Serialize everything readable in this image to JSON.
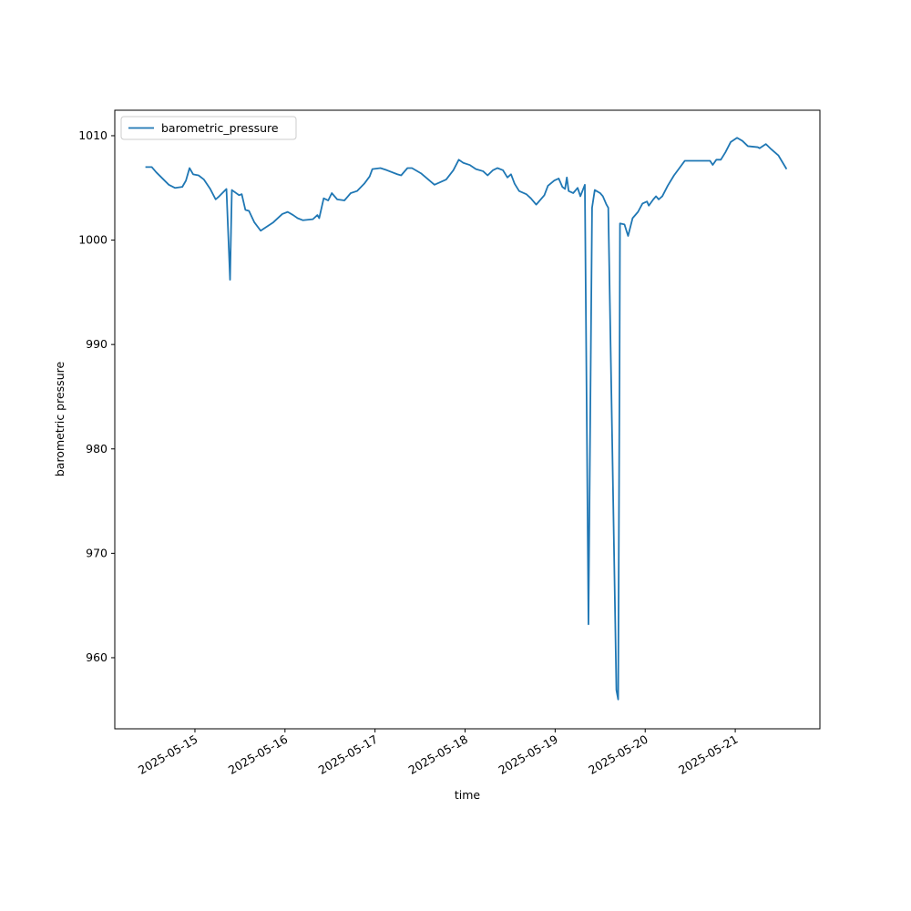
{
  "chart_data": {
    "type": "line",
    "xlabel": "time",
    "ylabel": "barometric pressure",
    "x": [
      14.45,
      14.52,
      14.57,
      14.64,
      14.71,
      14.78,
      14.86,
      14.9,
      14.94,
      14.98,
      15.04,
      15.1,
      15.17,
      15.23,
      15.27,
      15.35,
      15.39,
      15.41,
      15.49,
      15.52,
      15.56,
      15.6,
      15.66,
      15.73,
      15.87,
      15.97,
      16.03,
      16.09,
      16.14,
      16.2,
      16.31,
      16.36,
      16.38,
      16.43,
      16.48,
      16.52,
      16.58,
      16.66,
      16.73,
      16.8,
      16.88,
      16.94,
      16.97,
      17.06,
      17.13,
      17.25,
      17.29,
      17.36,
      17.41,
      17.51,
      17.66,
      17.79,
      17.87,
      17.93,
      17.98,
      18.05,
      18.12,
      18.2,
      18.25,
      18.31,
      18.36,
      18.42,
      18.47,
      18.51,
      18.55,
      18.6,
      18.68,
      18.73,
      18.79,
      18.88,
      18.92,
      18.99,
      19.04,
      19.08,
      19.11,
      19.13,
      19.15,
      19.2,
      19.25,
      19.28,
      19.33,
      19.37,
      19.41,
      19.44,
      19.5,
      19.53,
      19.57,
      19.59,
      19.68,
      19.7,
      19.715,
      19.72,
      19.77,
      19.81,
      19.86,
      19.92,
      19.97,
      20.02,
      20.04,
      20.09,
      20.12,
      20.15,
      20.19,
      20.25,
      20.32,
      20.38,
      20.44,
      20.72,
      20.75,
      20.79,
      20.84,
      20.89,
      20.95,
      21.02,
      21.08,
      21.14,
      21.25,
      21.27,
      21.34,
      21.4,
      21.48,
      21.57
    ],
    "series": [
      {
        "name": "barometric_pressure",
        "color": "#1f77b4",
        "values": [
          1007.0,
          1007.0,
          1006.5,
          1005.9,
          1005.3,
          1005.0,
          1005.1,
          1005.7,
          1006.9,
          1006.3,
          1006.2,
          1005.8,
          1004.9,
          1003.9,
          1004.2,
          1004.9,
          996.2,
          1004.8,
          1004.3,
          1004.4,
          1002.9,
          1002.8,
          1001.7,
          1000.9,
          1001.7,
          1002.5,
          1002.7,
          1002.4,
          1002.1,
          1001.9,
          1002.0,
          1002.4,
          1002.1,
          1004.0,
          1003.8,
          1004.5,
          1003.9,
          1003.8,
          1004.5,
          1004.7,
          1005.4,
          1006.1,
          1006.8,
          1006.9,
          1006.7,
          1006.3,
          1006.2,
          1006.9,
          1006.9,
          1006.4,
          1005.3,
          1005.8,
          1006.7,
          1007.7,
          1007.4,
          1007.2,
          1006.8,
          1006.6,
          1006.2,
          1006.7,
          1006.9,
          1006.7,
          1006.0,
          1006.3,
          1005.4,
          1004.7,
          1004.4,
          1004.0,
          1003.4,
          1004.3,
          1005.2,
          1005.7,
          1005.9,
          1005.1,
          1004.9,
          1006.0,
          1004.7,
          1004.5,
          1005.0,
          1004.2,
          1005.3,
          963.2,
          1003.1,
          1004.8,
          1004.5,
          1004.2,
          1003.4,
          1003.1,
          956.9,
          956.0,
          987.2,
          1001.6,
          1001.5,
          1000.4,
          1002.1,
          1002.7,
          1003.5,
          1003.7,
          1003.3,
          1003.9,
          1004.2,
          1003.9,
          1004.2,
          1005.2,
          1006.2,
          1006.9,
          1007.6,
          1007.6,
          1007.2,
          1007.7,
          1007.7,
          1008.4,
          1009.4,
          1009.8,
          1009.5,
          1009.0,
          1008.9,
          1008.8,
          1009.2,
          1008.7,
          1008.1,
          1006.8
        ]
      }
    ],
    "xlim": [
      14.11,
      21.94
    ],
    "ylim": [
      953.19,
      1012.44
    ],
    "xticks": [
      {
        "value": 15,
        "label": "2025-05-15"
      },
      {
        "value": 16,
        "label": "2025-05-16"
      },
      {
        "value": 17,
        "label": "2025-05-17"
      },
      {
        "value": 18,
        "label": "2025-05-18"
      },
      {
        "value": 19,
        "label": "2025-05-19"
      },
      {
        "value": 20,
        "label": "2025-05-20"
      },
      {
        "value": 21,
        "label": "2025-05-21"
      }
    ],
    "yticks": [
      960,
      970,
      980,
      990,
      1000,
      1010
    ],
    "legend": "upper-left"
  }
}
